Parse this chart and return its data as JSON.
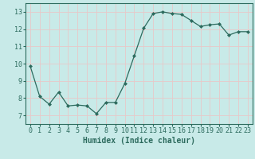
{
  "x": [
    0,
    1,
    2,
    3,
    4,
    5,
    6,
    7,
    8,
    9,
    10,
    11,
    12,
    13,
    14,
    15,
    16,
    17,
    18,
    19,
    20,
    21,
    22,
    23
  ],
  "y": [
    9.85,
    8.1,
    7.65,
    8.35,
    7.55,
    7.6,
    7.55,
    7.1,
    7.75,
    7.75,
    8.85,
    10.45,
    12.05,
    12.9,
    13.0,
    12.9,
    12.85,
    12.5,
    12.15,
    12.25,
    12.3,
    11.65,
    11.85,
    11.85
  ],
  "line_color": "#2d6b5e",
  "marker": "D",
  "marker_size": 2,
  "bg_color": "#c8eae8",
  "grid_color": "#e8c8c8",
  "xlabel": "Humidex (Indice chaleur)",
  "xlim": [
    -0.5,
    23.5
  ],
  "ylim": [
    6.5,
    13.5
  ],
  "yticks": [
    7,
    8,
    9,
    10,
    11,
    12,
    13
  ],
  "xticks": [
    0,
    1,
    2,
    3,
    4,
    5,
    6,
    7,
    8,
    9,
    10,
    11,
    12,
    13,
    14,
    15,
    16,
    17,
    18,
    19,
    20,
    21,
    22,
    23
  ],
  "tick_fontsize": 6,
  "label_fontsize": 7
}
